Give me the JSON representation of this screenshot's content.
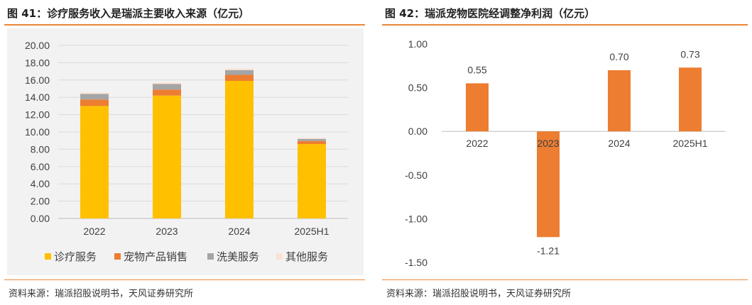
{
  "chart_data": [
    {
      "type": "bar",
      "stacked": true,
      "title": "图 41：诊疗服务收入是瑞派主要收入来源（亿元）",
      "source": "资料来源：瑞派招股说明书，天风证券研究所",
      "categories": [
        "2022",
        "2023",
        "2024",
        "2025H1"
      ],
      "ylim": [
        0,
        20
      ],
      "yticks": [
        "0.00",
        "2.00",
        "4.00",
        "6.00",
        "8.00",
        "10.00",
        "12.00",
        "14.00",
        "16.00",
        "18.00",
        "20.00"
      ],
      "grid": true,
      "legend_position": "bottom",
      "series": [
        {
          "name": "诊疗服务",
          "color": "#ffc000",
          "values": [
            13.0,
            14.2,
            15.9,
            8.6
          ]
        },
        {
          "name": "宠物产品销售",
          "color": "#ed7d31",
          "values": [
            0.75,
            0.7,
            0.7,
            0.35
          ]
        },
        {
          "name": "洗美服务",
          "color": "#a5a5a5",
          "values": [
            0.65,
            0.65,
            0.55,
            0.25
          ]
        },
        {
          "name": "其他服务",
          "color": "#fbe2d5",
          "values": [
            0.15,
            0.15,
            0.15,
            0.1
          ]
        }
      ]
    },
    {
      "type": "bar",
      "title": "图 42：瑞派宠物医院经调整净利润（亿元）",
      "source": "资料来源：瑞派招股说明书，天风证券研究所",
      "categories": [
        "2022",
        "2023",
        "2024",
        "2025H1"
      ],
      "values": [
        0.55,
        -1.21,
        0.7,
        0.73
      ],
      "data_labels": [
        "0.55",
        "-1.21",
        "0.70",
        "0.73"
      ],
      "ylim": [
        -1.5,
        1.0
      ],
      "yticks": [
        "1.00",
        "0.50",
        "0.00",
        "-0.50",
        "-1.00",
        "-1.50"
      ],
      "grid": false,
      "color": "#ed7d31"
    }
  ]
}
